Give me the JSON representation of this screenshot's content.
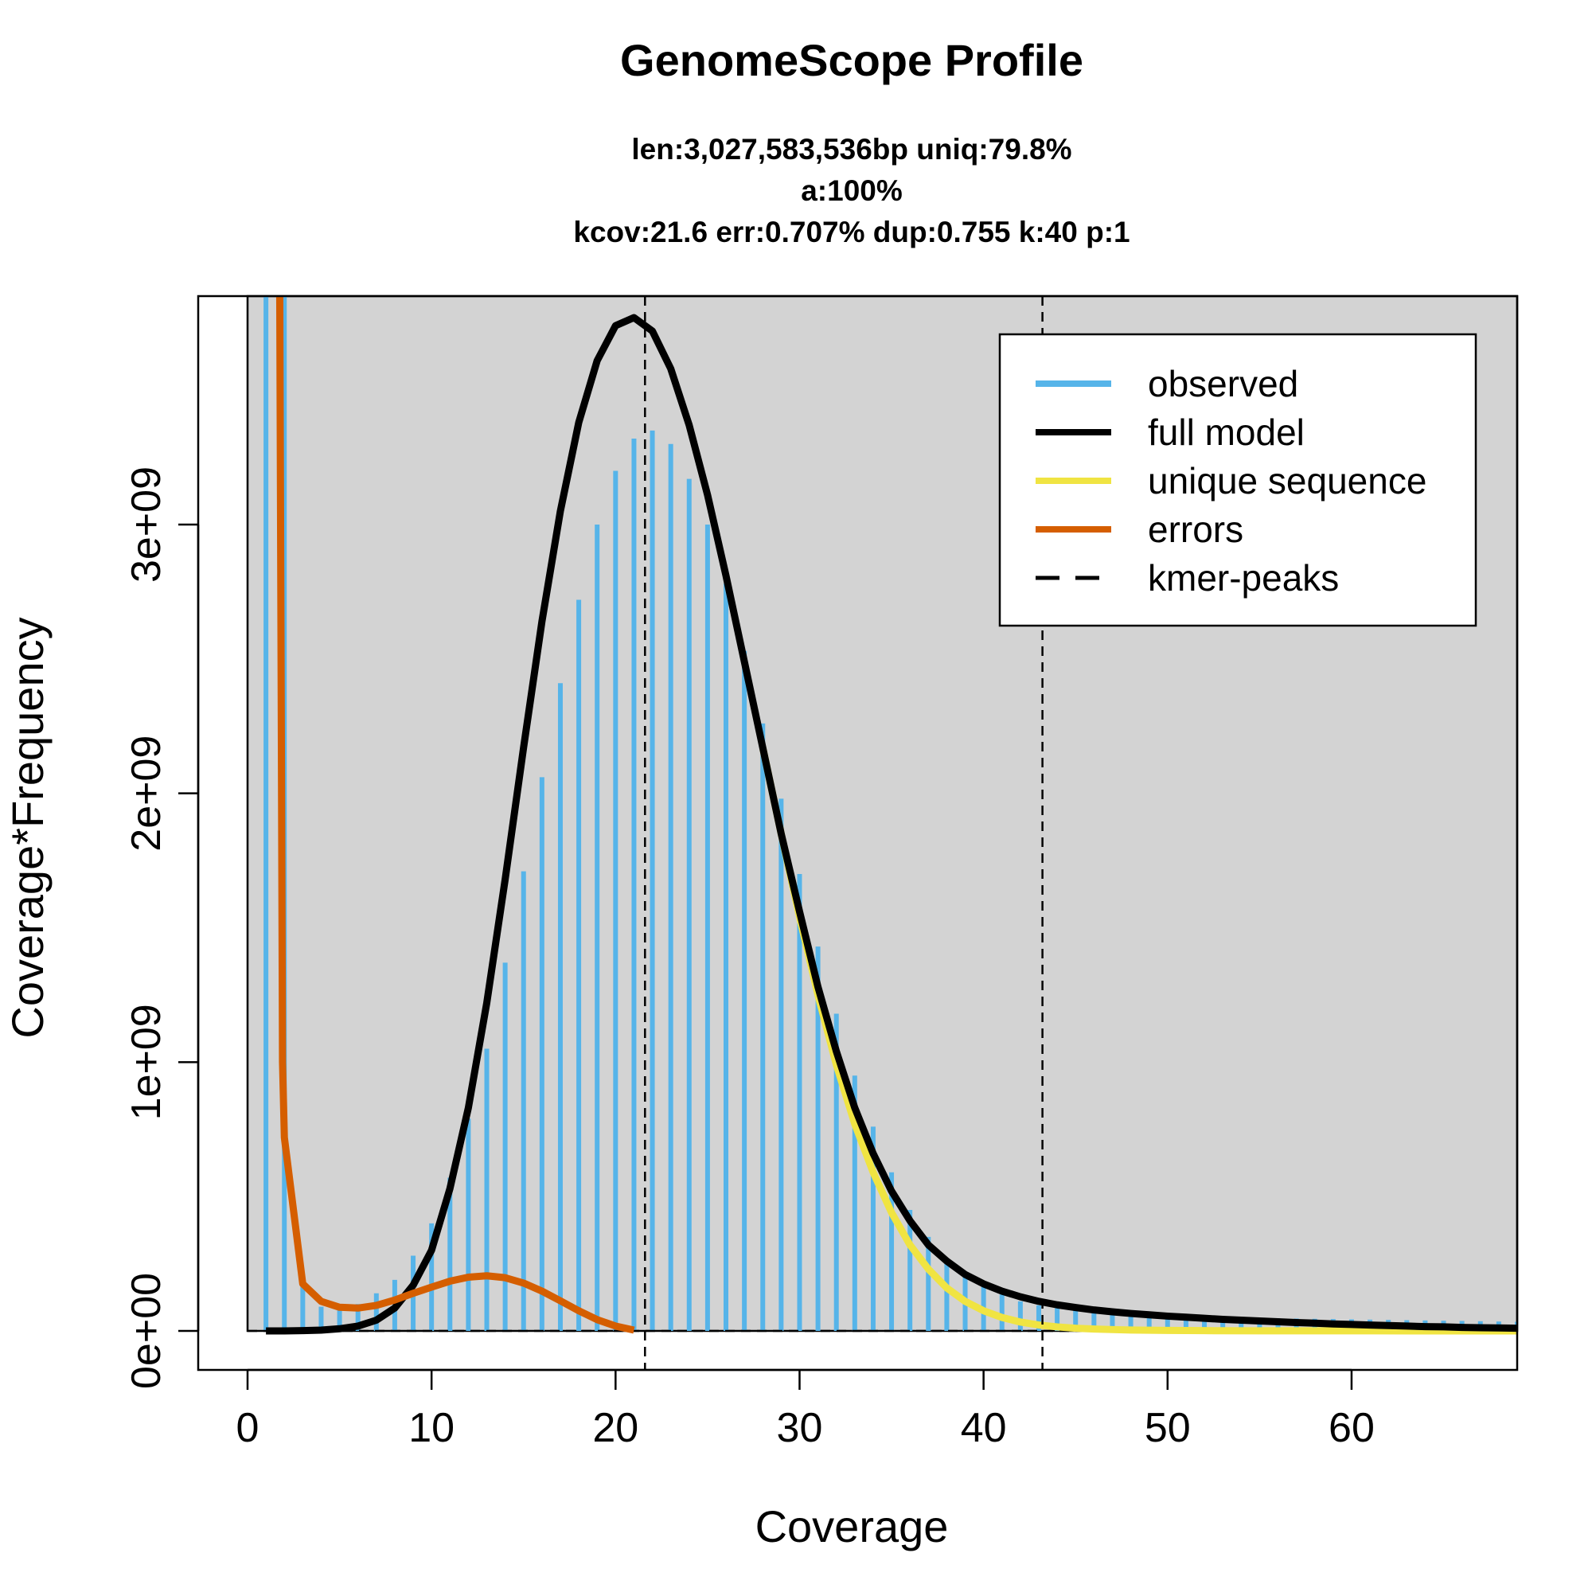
{
  "chart_data": {
    "type": "bar",
    "title": "GenomeScope Profile",
    "subtitle_lines": [
      "len:3,027,583,536bp uniq:79.8%",
      "a:100%",
      "kcov:21.6 err:0.707%  dup:0.755  k:40 p:1"
    ],
    "xlabel": "Coverage",
    "ylabel": "Coverage*Frequency",
    "xlim": [
      0,
      69
    ],
    "ylim": [
      0,
      3850000000.0
    ],
    "x_ticks": [
      {
        "value": 0,
        "label": "0"
      },
      {
        "value": 10,
        "label": "10"
      },
      {
        "value": 20,
        "label": "20"
      },
      {
        "value": 30,
        "label": "30"
      },
      {
        "value": 40,
        "label": "40"
      },
      {
        "value": 50,
        "label": "50"
      },
      {
        "value": 60,
        "label": "60"
      }
    ],
    "y_ticks": [
      {
        "value": 0,
        "label": "0e+00"
      },
      {
        "value": 1000000000,
        "label": "1e+09"
      },
      {
        "value": 2000000000,
        "label": "2e+09"
      },
      {
        "value": 3000000000,
        "label": "3e+09"
      }
    ],
    "grid": false,
    "legend_position": "top-right",
    "legend": [
      {
        "label": "observed",
        "color": "#56B4E9",
        "style": "solid"
      },
      {
        "label": "full model",
        "color": "#000000",
        "style": "solid"
      },
      {
        "label": "unique sequence",
        "color": "#F0E442",
        "style": "solid"
      },
      {
        "label": "errors",
        "color": "#D55E00",
        "style": "solid"
      },
      {
        "label": "kmer-peaks",
        "color": "#000000",
        "style": "dashed"
      }
    ],
    "colors": {
      "panel_background": "#D3D3D3",
      "observed": "#56B4E9",
      "full_model": "#000000",
      "unique": "#F0E442",
      "errors": "#D55E00",
      "peaks": "#000000"
    },
    "kmer_peaks": [
      21.6,
      43.2
    ],
    "observed": {
      "x": [
        1,
        2,
        3,
        4,
        5,
        6,
        7,
        8,
        9,
        10,
        11,
        12,
        13,
        14,
        15,
        16,
        17,
        18,
        19,
        20,
        21,
        22,
        23,
        24,
        25,
        26,
        27,
        28,
        29,
        30,
        31,
        32,
        33,
        34,
        35,
        36,
        37,
        38,
        39,
        40,
        41,
        42,
        43,
        44,
        45,
        46,
        47,
        48,
        49,
        50,
        51,
        52,
        53,
        54,
        55,
        56,
        57,
        58,
        59,
        60,
        61,
        62,
        63,
        64,
        65,
        66,
        67,
        68,
        69
      ],
      "y": [
        3850000000.0,
        3850000000.0,
        170000000.0,
        90000000.0,
        80000000.0,
        100000000.0,
        140000000.0,
        190000000.0,
        280000000.0,
        400000000.0,
        570000000.0,
        790000000.0,
        1050000000.0,
        1370000000.0,
        1710000000.0,
        2060000000.0,
        2410000000.0,
        2720000000.0,
        3000000000.0,
        3200000000.0,
        3320000000.0,
        3350000000.0,
        3300000000.0,
        3170000000.0,
        3000000000.0,
        2780000000.0,
        2530000000.0,
        2260000000.0,
        1980000000.0,
        1700000000.0,
        1430000000.0,
        1180000000.0,
        950000000.0,
        760000000.0,
        590000000.0,
        450000000.0,
        350000000.0,
        270000000.0,
        210000000.0,
        165000000.0,
        135000000.0,
        110000000.0,
        95000000.0,
        85000000.0,
        78000000.0,
        72000000.0,
        68000000.0,
        64000000.0,
        60000000.0,
        57000000.0,
        55000000.0,
        53000000.0,
        51000000.0,
        49000000.0,
        48000000.0,
        47000000.0,
        46000000.0,
        45000000.0,
        44000000.0,
        43000000.0,
        42000000.0,
        41000000.0,
        40000000.0,
        39000000.0,
        38000000.0,
        37000000.0,
        36000000.0,
        35000000.0,
        34000000.0
      ]
    },
    "full_model": {
      "x": [
        1,
        2,
        3,
        4,
        5,
        6,
        7,
        8,
        9,
        10,
        11,
        12,
        13,
        14,
        15,
        16,
        17,
        18,
        19,
        20,
        21,
        22,
        23,
        24,
        25,
        26,
        27,
        28,
        29,
        30,
        31,
        32,
        33,
        34,
        35,
        36,
        37,
        38,
        39,
        40,
        41,
        42,
        43,
        44,
        45,
        46,
        47,
        48,
        49,
        50,
        51,
        52,
        53,
        54,
        55,
        56,
        57,
        58,
        59,
        60,
        61,
        62,
        63,
        64,
        65,
        66,
        67,
        68,
        69
      ],
      "y": [
        0,
        0,
        1000000.0,
        3000000.0,
        8000000.0,
        18000000.0,
        40000000.0,
        85000000.0,
        170000000.0,
        300000000.0,
        530000000.0,
        830000000.0,
        1220000000.0,
        1680000000.0,
        2170000000.0,
        2640000000.0,
        3050000000.0,
        3380000000.0,
        3610000000.0,
        3740000000.0,
        3770000000.0,
        3720000000.0,
        3580000000.0,
        3370000000.0,
        3110000000.0,
        2810000000.0,
        2490000000.0,
        2170000000.0,
        1850000000.0,
        1560000000.0,
        1280000000.0,
        1040000000.0,
        830000000.0,
        660000000.0,
        520000000.0,
        410000000.0,
        320000000.0,
        260000000.0,
        210000000.0,
        175000000.0,
        148000000.0,
        127000000.0,
        110000000.0,
        97000000.0,
        87000000.0,
        78000000.0,
        71000000.0,
        65000000.0,
        60000000.0,
        55000000.0,
        51000000.0,
        47000000.0,
        43000000.0,
        40000000.0,
        37000000.0,
        34000000.0,
        31000000.0,
        29000000.0,
        26000000.0,
        24000000.0,
        22000000.0,
        20000000.0,
        18000000.0,
        16000000.0,
        15000000.0,
        13000000.0,
        12000000.0,
        11000000.0,
        10000000.0
      ]
    },
    "unique_sequence": {
      "x": [
        28,
        29,
        30,
        31,
        32,
        33,
        34,
        35,
        36,
        37,
        38,
        39,
        40,
        41,
        42,
        43,
        44,
        45,
        46,
        47,
        48,
        49,
        50,
        52,
        55,
        58,
        61,
        64,
        67,
        69
      ],
      "y": [
        2170000000.0,
        1850000000.0,
        1540000000.0,
        1250000000.0,
        990000000.0,
        770000000.0,
        590000000.0,
        440000000.0,
        320000000.0,
        230000000.0,
        160000000.0,
        110000000.0,
        75000000.0,
        50000000.0,
        33000000.0,
        22000000.0,
        15000000.0,
        10000000.0,
        7000000.0,
        5000000.0,
        3500000.0,
        2500000.0,
        1800000.0,
        1000000.0,
        500000.0,
        300000.0,
        200000.0,
        100000.0,
        50000.0,
        0
      ]
    },
    "errors": {
      "x": [
        1.75,
        1.9,
        2,
        3,
        4,
        5,
        6,
        7,
        8,
        9,
        10,
        11,
        12,
        13,
        14,
        15,
        16,
        17,
        18,
        19,
        20,
        21
      ],
      "y": [
        3850000000.0,
        1000000000.0,
        720000000.0,
        175000000.0,
        110000000.0,
        88000000.0,
        85000000.0,
        95000000.0,
        115000000.0,
        140000000.0,
        163000000.0,
        185000000.0,
        200000000.0,
        205000000.0,
        198000000.0,
        178000000.0,
        148000000.0,
        112000000.0,
        75000000.0,
        42000000.0,
        18000000.0,
        3000000.0
      ]
    }
  }
}
